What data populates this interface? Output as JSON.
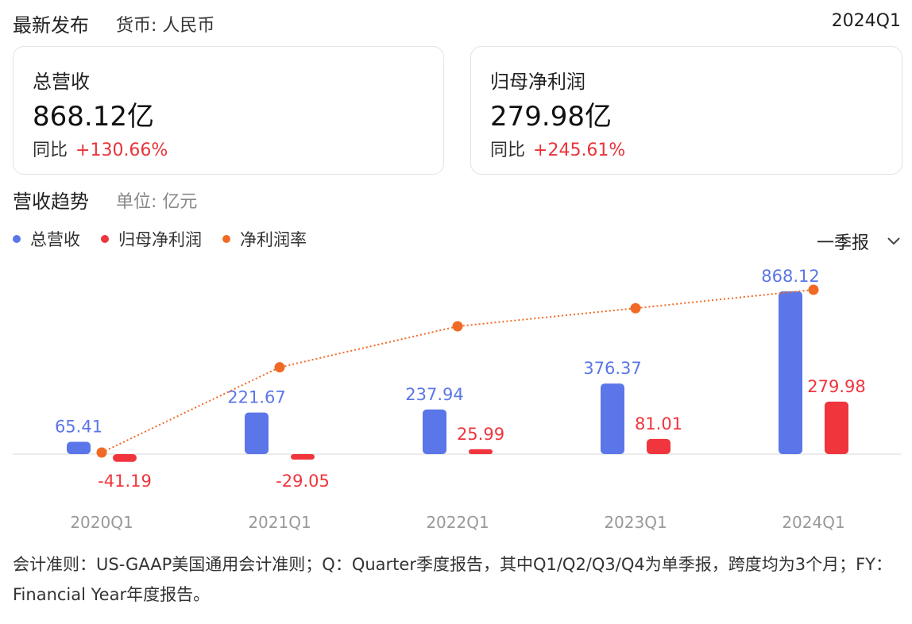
{
  "header": {
    "title": "最新发布",
    "currency": "货币: 人民币",
    "period": "2024Q1"
  },
  "cards": [
    {
      "label": "总营收",
      "value": "868.12亿",
      "yoy_label": "同比",
      "yoy_change": "+130.66%"
    },
    {
      "label": "归母净利润",
      "value": "279.98亿",
      "yoy_label": "同比",
      "yoy_change": "+245.61%"
    }
  ],
  "section": {
    "title": "营收趋势",
    "unit": "单位: 亿元"
  },
  "period_select": {
    "selected": "一季报",
    "icon": "chevron-down-icon"
  },
  "chart_data": {
    "type": "bar",
    "categories": [
      "2020Q1",
      "2021Q1",
      "2022Q1",
      "2023Q1",
      "2024Q1"
    ],
    "series": [
      {
        "name": "总营收",
        "type": "bar",
        "color": "#5b76e8",
        "values": [
          65.41,
          221.67,
          237.94,
          376.37,
          868.12
        ],
        "labels": [
          "65.41",
          "221.67",
          "237.94",
          "376.37",
          "868.12"
        ]
      },
      {
        "name": "归母净利润",
        "type": "bar",
        "color": "#f0353d",
        "values": [
          -41.19,
          -29.05,
          25.99,
          81.01,
          279.98
        ],
        "labels": [
          "-41.19",
          "-29.05",
          "25.99",
          "81.01",
          "279.98"
        ]
      },
      {
        "name": "净利润率",
        "type": "line",
        "color": "#f06a25",
        "values": [
          -63.0,
          -13.1,
          10.9,
          21.5,
          32.3
        ]
      }
    ],
    "ylim": [
      -100,
      900
    ],
    "line_ylim": [
      -63.0,
      32.3
    ],
    "grid": false,
    "legend": "top-left"
  },
  "footnote": "会计准则：US-GAAP美国通用会计准则；Q：Quarter季度报告，其中Q1/Q2/Q3/Q4为单季报，跨度均为3个月；FY：Financial Year年度报告。"
}
